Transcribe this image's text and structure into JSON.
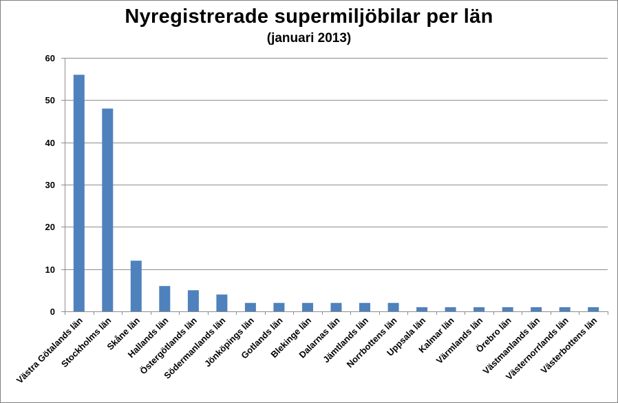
{
  "chart_data": {
    "type": "bar",
    "title": "Nyregistrerade supermiljöbilar per län",
    "subtitle": "(januari 2013)",
    "xlabel": "",
    "ylabel": "",
    "ylim": [
      0,
      60
    ],
    "yticks": [
      0,
      10,
      20,
      30,
      40,
      50,
      60
    ],
    "grid": true,
    "legend": "none",
    "bar_color": "#4f81bd",
    "categories": [
      "Västra Götalands län",
      "Stockholms län",
      "Skåne län",
      "Hallands län",
      "Östergötlands län",
      "Södermanlands län",
      "Jönköpings län",
      "Gotlands län",
      "Blekinge län",
      "Dalarnas län",
      "Jämtlands län",
      "Norrbottens län",
      "Uppsala län",
      "Kalmar län",
      "Värmlands län",
      "Örebro län",
      "Västmanlands län",
      "Västernorrlands län",
      "Västerbottens län"
    ],
    "values": [
      56,
      48,
      12,
      6,
      5,
      4,
      2,
      2,
      2,
      2,
      2,
      2,
      1,
      1,
      1,
      1,
      1,
      1,
      1
    ]
  }
}
